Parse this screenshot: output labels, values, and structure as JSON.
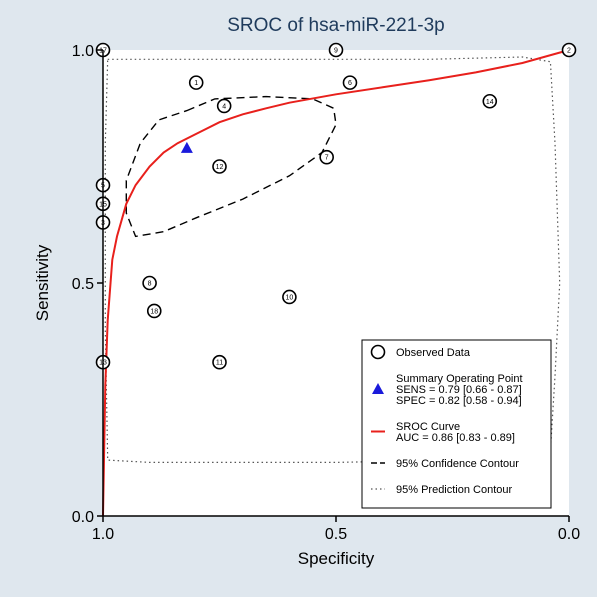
{
  "chart_data": {
    "type": "scatter",
    "title": "SROC of hsa-miR-221-3p",
    "xlabel": "Specificity",
    "ylabel": "Sensitivity",
    "xlim": [
      1.0,
      0.0
    ],
    "ylim": [
      0.0,
      1.0
    ],
    "x_ticks": [
      "1.0",
      "0.5",
      "0.0"
    ],
    "y_ticks": [
      "0.0",
      "0.5",
      "1.0"
    ],
    "grid": false,
    "legend_position": "bottom-right",
    "observed_data": [
      {
        "label": "1",
        "specificity": 0.8,
        "sensitivity": 0.93
      },
      {
        "label": "2",
        "specificity": 0.0,
        "sensitivity": 1.0
      },
      {
        "label": "3",
        "specificity": 1.0,
        "sensitivity": 0.63
      },
      {
        "label": "4",
        "specificity": 0.74,
        "sensitivity": 0.88
      },
      {
        "label": "5",
        "specificity": 1.0,
        "sensitivity": 0.71
      },
      {
        "label": "6",
        "specificity": 0.47,
        "sensitivity": 0.93
      },
      {
        "label": "7",
        "specificity": 0.52,
        "sensitivity": 0.77
      },
      {
        "label": "8",
        "specificity": 0.9,
        "sensitivity": 0.5
      },
      {
        "label": "9",
        "specificity": 0.5,
        "sensitivity": 1.0
      },
      {
        "label": "10",
        "specificity": 0.6,
        "sensitivity": 0.47
      },
      {
        "label": "11",
        "specificity": 0.75,
        "sensitivity": 0.33
      },
      {
        "label": "12",
        "specificity": 0.75,
        "sensitivity": 0.75
      },
      {
        "label": "13",
        "specificity": 1.0,
        "sensitivity": 0.33
      },
      {
        "label": "14",
        "specificity": 0.17,
        "sensitivity": 0.89
      },
      {
        "label": "15",
        "specificity": 1.0,
        "sensitivity": 0.67
      },
      {
        "label": "17",
        "specificity": 1.0,
        "sensitivity": 1.0
      },
      {
        "label": "18",
        "specificity": 0.89,
        "sensitivity": 0.44
      }
    ],
    "summary_point": {
      "specificity": 0.82,
      "sensitivity": 0.79
    },
    "sroc_curve": {
      "specificity": [
        1.0,
        0.995,
        0.99,
        0.98,
        0.97,
        0.95,
        0.93,
        0.9,
        0.87,
        0.84,
        0.8,
        0.75,
        0.7,
        0.65,
        0.6,
        0.5,
        0.4,
        0.3,
        0.2,
        0.1,
        0.0
      ],
      "sensitivity": [
        0.0,
        0.28,
        0.42,
        0.55,
        0.6,
        0.67,
        0.71,
        0.75,
        0.78,
        0.8,
        0.82,
        0.845,
        0.862,
        0.875,
        0.887,
        0.905,
        0.92,
        0.935,
        0.952,
        0.972,
        1.0
      ]
    },
    "confidence_contour": {
      "specificity": [
        0.82,
        0.76,
        0.65,
        0.55,
        0.505,
        0.5,
        0.53,
        0.6,
        0.7,
        0.8,
        0.87,
        0.93,
        0.95,
        0.95,
        0.92,
        0.88,
        0.82
      ],
      "sensitivity": [
        0.87,
        0.895,
        0.9,
        0.895,
        0.875,
        0.84,
        0.78,
        0.73,
        0.68,
        0.64,
        0.61,
        0.6,
        0.65,
        0.72,
        0.8,
        0.85,
        0.87
      ]
    },
    "prediction_contour": {
      "specificity": [
        0.99,
        0.9,
        0.7,
        0.5,
        0.3,
        0.1,
        0.04,
        0.03,
        0.02,
        0.03,
        0.04,
        0.25,
        0.5,
        0.7,
        0.9,
        0.99,
        0.995,
        0.995,
        0.99
      ],
      "sensitivity": [
        0.98,
        0.98,
        0.98,
        0.98,
        0.98,
        0.985,
        0.975,
        0.8,
        0.5,
        0.3,
        0.14,
        0.12,
        0.115,
        0.115,
        0.115,
        0.12,
        0.4,
        0.8,
        0.98
      ]
    },
    "legend": [
      {
        "marker": "circle",
        "lines": [
          "Observed Data"
        ]
      },
      {
        "marker": "triangle",
        "lines": [
          "Summary Operating Point",
          "SENS = 0.79 [0.66 - 0.87]",
          "SPEC = 0.82 [0.58 - 0.94]"
        ]
      },
      {
        "marker": "solid-line",
        "lines": [
          "SROC Curve",
          "AUC = 0.86 [0.83 - 0.89]"
        ]
      },
      {
        "marker": "dashed-line",
        "lines": [
          "95% Confidence Contour"
        ]
      },
      {
        "marker": "dotted-line",
        "lines": [
          "95% Prediction Contour"
        ]
      }
    ],
    "colors": {
      "background": "#dfe7ee",
      "plot_area": "#ffffff",
      "title": "#1f3b5c",
      "sroc_curve": "#e8201c",
      "summary_point": "#1a1adb",
      "observed_data": "#000000"
    }
  }
}
